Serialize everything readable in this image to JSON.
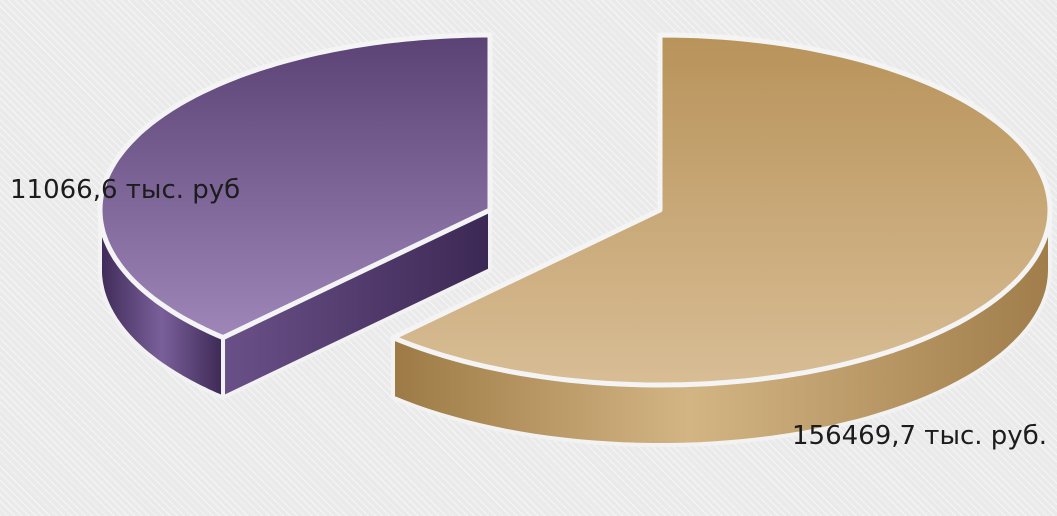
{
  "chart_data": {
    "type": "pie",
    "style": "3d-exploded",
    "categories": [
      "",
      ""
    ],
    "values": [
      11066.6,
      156469.7
    ],
    "data_labels": [
      "11066,6 тыс. руб",
      "156469,7 тыс. руб."
    ],
    "colors": [
      "#7a5d96",
      "#c4a06c"
    ],
    "title": "",
    "legend": "none"
  }
}
